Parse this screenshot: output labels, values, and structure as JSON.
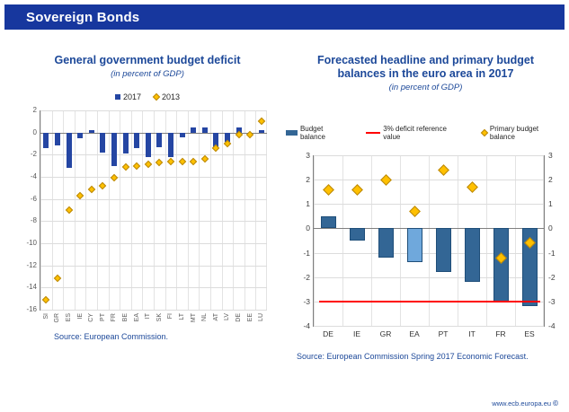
{
  "header": {
    "title": "Sovereign Bonds"
  },
  "colors": {
    "header_bg": "#17379E",
    "title_text": "#1C4899",
    "bar_2017": "#2546A3",
    "bar_budget_balance": "#336695",
    "bar_euro_area": "#6FA8DC",
    "diamond": "#FFC000",
    "reference_line": "#FF0000"
  },
  "chart_data": [
    {
      "type": "bar",
      "title": "General government budget deficit",
      "subtitle": "(in percent of GDP)",
      "categories": [
        "SI",
        "GR",
        "ES",
        "IE",
        "CY",
        "PT",
        "FR",
        "BE",
        "EA",
        "IT",
        "SK",
        "FI",
        "LT",
        "MT",
        "NL",
        "AT",
        "LV",
        "DE",
        "EE",
        "LU"
      ],
      "series": [
        {
          "name": "2017",
          "marker": "bar",
          "color": "#2546A3",
          "values": [
            -1.4,
            -1.2,
            -3.2,
            -0.5,
            0.2,
            -1.8,
            -3.0,
            -1.9,
            -1.4,
            -2.2,
            -1.3,
            -2.2,
            -0.4,
            0.5,
            0.5,
            -1.3,
            -0.8,
            0.5,
            -0.3,
            0.2
          ]
        },
        {
          "name": "2013",
          "marker": "diamond",
          "color": "#FFC000",
          "values": [
            -15.1,
            -13.2,
            -7.0,
            -5.7,
            -5.1,
            -4.8,
            -4.1,
            -3.1,
            -3.0,
            -2.9,
            -2.7,
            -2.6,
            -2.6,
            -2.6,
            -2.4,
            -1.4,
            -1.0,
            -0.2,
            -0.2,
            1.0
          ]
        }
      ],
      "ylim": [
        -16,
        2
      ],
      "ytick_step": 2,
      "yticks": [
        2,
        0,
        -2,
        -4,
        -6,
        -8,
        -10,
        -12,
        -14,
        -16
      ],
      "grid": true,
      "legend_position": "top",
      "source": "Source: European Commission."
    },
    {
      "type": "bar",
      "title": "Forecasted headline and primary budget balances in the euro area in 2017",
      "subtitle": "(in percent of GDP)",
      "categories": [
        "DE",
        "IE",
        "GR",
        "EA",
        "PT",
        "IT",
        "FR",
        "ES"
      ],
      "series": [
        {
          "name": "Budget balance",
          "marker": "bar",
          "color": "#336695",
          "point_colors": {
            "EA": "#6FA8DC"
          },
          "values": [
            0.5,
            -0.5,
            -1.2,
            -1.4,
            -1.8,
            -2.2,
            -3.0,
            -3.2
          ]
        },
        {
          "name": "3% deficit  reference value",
          "marker": "line",
          "color": "#FF0000",
          "value": -3
        },
        {
          "name": "Primary budget balance",
          "marker": "diamond",
          "color": "#FFC000",
          "values": [
            1.6,
            1.6,
            2.0,
            0.7,
            2.4,
            1.7,
            -1.2,
            -0.6
          ]
        }
      ],
      "ylim": [
        -4,
        3
      ],
      "ytick_step": 1,
      "yticks": [
        3,
        2,
        1,
        0,
        -1,
        -2,
        -3,
        -4
      ],
      "grid": true,
      "legend_position": "top",
      "right_axis": true,
      "source": "Source: European Commission Spring 2017 Economic Forecast."
    }
  ],
  "footer": {
    "url": "www.ecb.europa.eu",
    "mark": "©"
  }
}
